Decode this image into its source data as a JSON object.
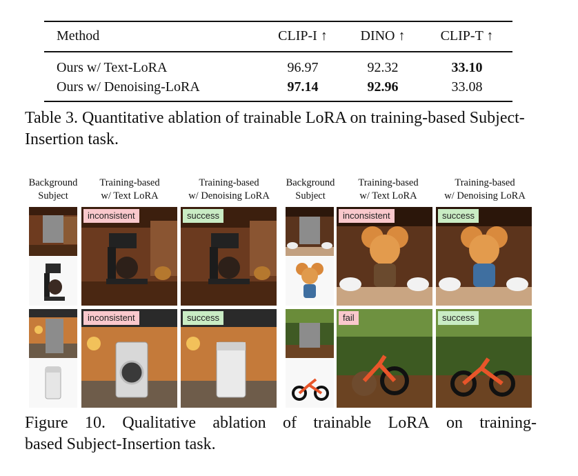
{
  "table": {
    "headers": [
      "Method",
      "CLIP-I ↑",
      "DINO ↑",
      "CLIP-T ↑"
    ],
    "rows": [
      {
        "method": "Ours w/ Text-LoRA",
        "clip_i": "96.97",
        "dino": "92.32",
        "clip_t": "33.10",
        "bold": [
          "clip_t"
        ]
      },
      {
        "method": "Ours w/ Denoising-LoRA",
        "clip_i": "97.14",
        "dino": "92.96",
        "clip_t": "33.08",
        "bold": [
          "clip_i",
          "dino"
        ]
      }
    ],
    "caption": "Table 3. Quantitative ablation of trainable LoRA on training-based Subject-Insertion task."
  },
  "figure": {
    "column_headers": {
      "left_bg_subject": {
        "line1": "Background",
        "line2": "Subject"
      },
      "left_text_lora": {
        "line1": "Training-based",
        "line2": "w/ Text LoRA"
      },
      "left_denoise_lora": {
        "line1": "Training-based",
        "line2": "w/ Denoising LoRA"
      },
      "right_bg_subject": {
        "line1": "Background",
        "line2": "Subject"
      },
      "right_text_lora": {
        "line1": "Training-based",
        "line2": "w/ Text LoRA"
      },
      "right_denoise_lora": {
        "line1": "Training-based",
        "line2": "w/ Denoising LoRA"
      }
    },
    "tags": {
      "coffee_text": "inconsistent",
      "coffee_denoise": "success",
      "mouse_text": "inconsistent",
      "mouse_denoise": "success",
      "washer_text": "inconsistent",
      "washer_denoise": "success",
      "bike_text": "fail",
      "bike_denoise": "success"
    },
    "tag_colors": {
      "negative": "#f9c8cc",
      "positive": "#c9ecc4"
    },
    "caption_line1_words": [
      "Figure",
      "10.",
      "Qualitative",
      "ablation",
      "of",
      "trainable",
      "LoRA",
      "on",
      "training-"
    ],
    "caption_line2": "based Subject-Insertion task."
  }
}
